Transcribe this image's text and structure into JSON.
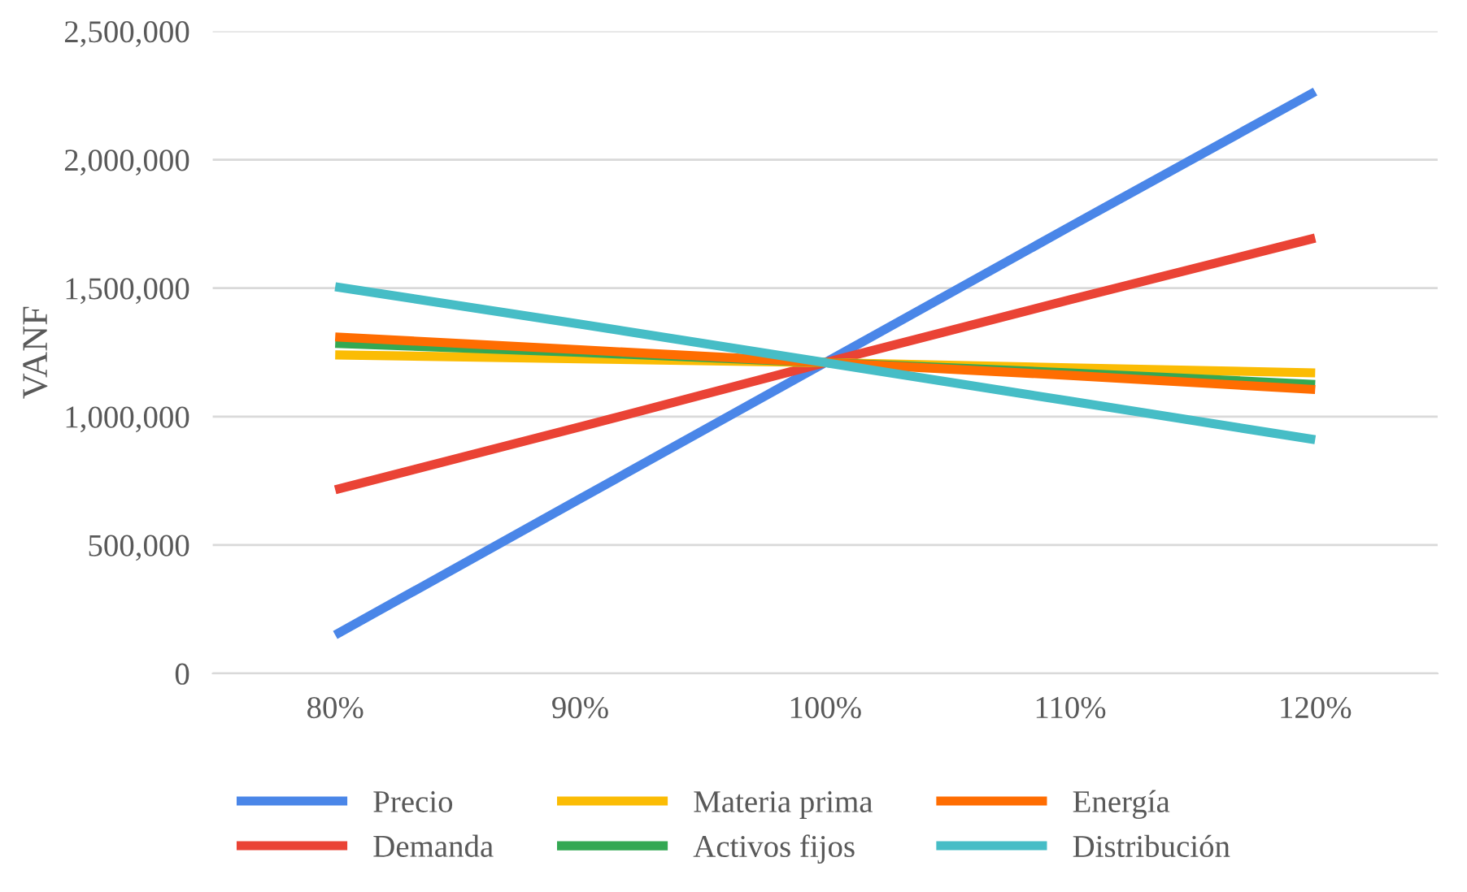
{
  "chart_data": {
    "type": "line",
    "ylabel": "VANF",
    "categories": [
      "80%",
      "90%",
      "100%",
      "110%",
      "120%"
    ],
    "series": [
      {
        "name": "Precio",
        "color": "#4a86e8",
        "values": [
          150000,
          680000,
          1210000,
          1740000,
          2265000
        ]
      },
      {
        "name": "Demanda",
        "color": "#ea4335",
        "values": [
          715000,
          960000,
          1210000,
          1455000,
          1695000
        ]
      },
      {
        "name": "Materia prima",
        "color": "#fbbc04",
        "values": [
          1240000,
          1225000,
          1210000,
          1190000,
          1170000
        ]
      },
      {
        "name": "Activos fijos",
        "color": "#34a853",
        "values": [
          1285000,
          1250000,
          1210000,
          1170000,
          1125000
        ]
      },
      {
        "name": "Energía",
        "color": "#ff6d01",
        "values": [
          1310000,
          1260000,
          1210000,
          1160000,
          1105000
        ]
      },
      {
        "name": "Distribución",
        "color": "#46bdc6",
        "values": [
          1505000,
          1360000,
          1210000,
          1060000,
          910000
        ]
      }
    ],
    "ylim": [
      0,
      2500000
    ],
    "yticks": [
      {
        "value": 0,
        "label": "0"
      },
      {
        "value": 500000,
        "label": "500,000"
      },
      {
        "value": 1000000,
        "label": "1,000,000"
      },
      {
        "value": 1500000,
        "label": "1,500,000"
      },
      {
        "value": 2000000,
        "label": "2,000,000"
      },
      {
        "value": 2500000,
        "label": "2,500,000"
      }
    ],
    "grid": "y",
    "legend": "bottom",
    "marker": "none",
    "line_style": "solid"
  }
}
